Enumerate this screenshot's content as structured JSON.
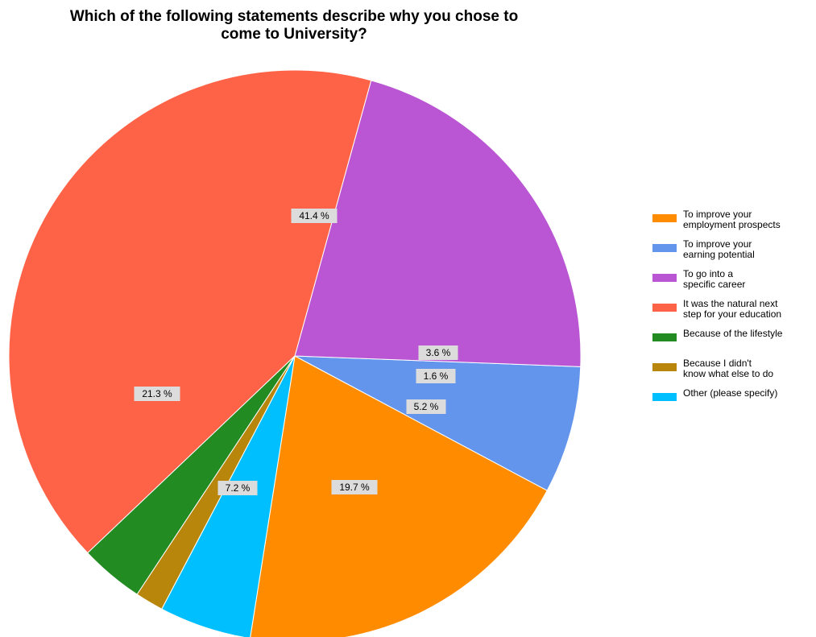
{
  "chart_data": {
    "type": "pie",
    "title": [
      "Which of the following statements describe why you chose to",
      "come to University?"
    ],
    "slices": [
      {
        "label": [
          "To improve your",
          "employment prospects"
        ],
        "value": 19.7,
        "value_label": "19.7 %",
        "color": "#ff8c00"
      },
      {
        "label": [
          "To improve your",
          "earning potential"
        ],
        "value": 7.2,
        "value_label": "7.2 %",
        "color": "#6495ed"
      },
      {
        "label": [
          "To go into a",
          "specific career"
        ],
        "value": 21.3,
        "value_label": "21.3 %",
        "color": "#ba55d3"
      },
      {
        "label": [
          "It was the natural next",
          "step for your education"
        ],
        "value": 41.4,
        "value_label": "41.4 %",
        "color": "#ff6347"
      },
      {
        "label": [
          "Because of the lifestyle"
        ],
        "value": 3.6,
        "value_label": "3.6 %",
        "color": "#228b22"
      },
      {
        "label": [
          "Because I didn't",
          "know what else to do"
        ],
        "value": 1.6,
        "value_label": "1.6 %",
        "color": "#b8860b"
      },
      {
        "label": [
          "Other (please specify)"
        ],
        "value": 5.2,
        "value_label": "5.2 %",
        "color": "#00bfff"
      }
    ],
    "legend_position": "right"
  }
}
